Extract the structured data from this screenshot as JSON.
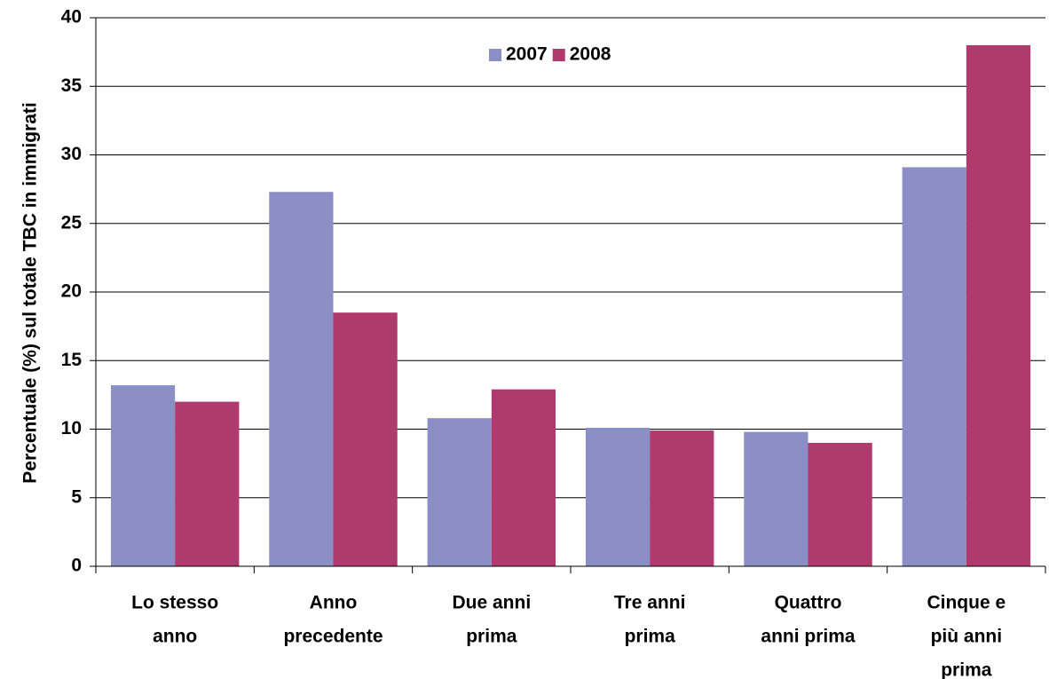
{
  "chart_data": {
    "type": "bar",
    "y_label": "Percentuale (%) sul totale TBC in immigrati",
    "categories": [
      [
        "Lo stesso",
        "anno"
      ],
      [
        "Anno",
        "precedente"
      ],
      [
        "Due anni",
        "prima"
      ],
      [
        "Tre anni",
        "prima"
      ],
      [
        "Quattro",
        "anni prima"
      ],
      [
        "Cinque e",
        "più anni",
        "prima"
      ]
    ],
    "series": [
      {
        "name": "2007",
        "color": "#8c8fc6",
        "values": [
          13.2,
          27.3,
          10.8,
          10.1,
          9.8,
          29.1
        ]
      },
      {
        "name": "2008",
        "color": "#b0396e",
        "values": [
          12.0,
          18.5,
          12.9,
          9.9,
          9.0,
          38.0
        ]
      }
    ],
    "ylim": [
      0,
      40
    ],
    "yticks": [
      0,
      5,
      10,
      15,
      20,
      25,
      30,
      35,
      40
    ],
    "grid": true,
    "legend": "top"
  }
}
